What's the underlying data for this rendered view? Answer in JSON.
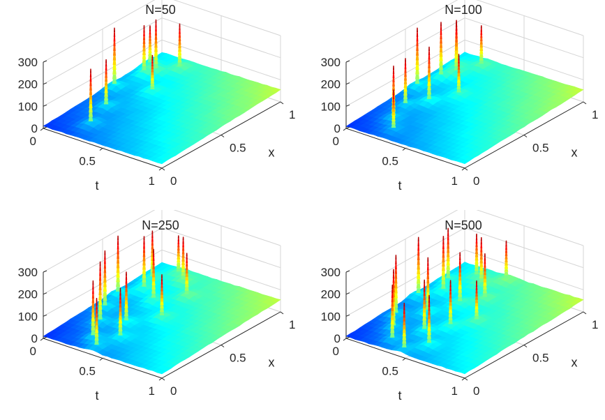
{
  "chart_data": [
    {
      "type": "surface",
      "title": "N=50",
      "xlabel": "x",
      "ylabel": "t",
      "zlabel": "",
      "x_ticks": [
        "0",
        "0.5",
        "1"
      ],
      "t_ticks": [
        "0",
        "0.5",
        "1"
      ],
      "z_ticks": [
        "0",
        "100",
        "200",
        "300"
      ],
      "xlim": [
        0,
        1
      ],
      "tlim": [
        0,
        1
      ],
      "zlim": [
        0,
        300
      ],
      "colormap": "jet",
      "grid": true,
      "spikes": [
        {
          "x": 0.15,
          "t": 0.25,
          "z": 270
        },
        {
          "x": 0.35,
          "t": 0.18,
          "z": 240
        },
        {
          "x": 0.55,
          "t": 0.05,
          "z": 300
        },
        {
          "x": 0.75,
          "t": 0.1,
          "z": 260
        },
        {
          "x": 0.8,
          "t": 0.15,
          "z": 280
        },
        {
          "x": 0.85,
          "t": 0.05,
          "z": 220
        },
        {
          "x": 0.9,
          "t": 0.25,
          "z": 250
        },
        {
          "x": 0.62,
          "t": 0.3,
          "z": 200
        }
      ]
    },
    {
      "type": "surface",
      "title": "N=100",
      "xlabel": "x",
      "ylabel": "t",
      "zlabel": "",
      "x_ticks": [
        "0",
        "0.5",
        "1"
      ],
      "t_ticks": [
        "0",
        "0.5",
        "1"
      ],
      "z_ticks": [
        "0",
        "100",
        "200",
        "300"
      ],
      "xlim": [
        0,
        1
      ],
      "tlim": [
        0,
        1
      ],
      "zlim": [
        0,
        300
      ],
      "colormap": "jet",
      "grid": true,
      "spikes": [
        {
          "x": 0.1,
          "t": 0.3,
          "z": 200
        },
        {
          "x": 0.2,
          "t": 0.2,
          "z": 260
        },
        {
          "x": 0.35,
          "t": 0.15,
          "z": 240
        },
        {
          "x": 0.45,
          "t": 0.25,
          "z": 280
        },
        {
          "x": 0.55,
          "t": 0.05,
          "z": 300
        },
        {
          "x": 0.6,
          "t": 0.35,
          "z": 220
        },
        {
          "x": 0.7,
          "t": 0.1,
          "z": 290
        },
        {
          "x": 0.78,
          "t": 0.15,
          "z": 270
        },
        {
          "x": 0.85,
          "t": 0.08,
          "z": 250
        },
        {
          "x": 0.92,
          "t": 0.22,
          "z": 230
        }
      ]
    },
    {
      "type": "surface",
      "title": "N=250",
      "xlabel": "x",
      "ylabel": "t",
      "zlabel": "",
      "x_ticks": [
        "0",
        "0.5",
        "1"
      ],
      "t_ticks": [
        "0",
        "0.5",
        "1"
      ],
      "z_ticks": [
        "0",
        "100",
        "200",
        "300"
      ],
      "xlim": [
        0,
        1
      ],
      "tlim": [
        0,
        1
      ],
      "zlim": [
        0,
        300
      ],
      "colormap": "jet",
      "grid": true,
      "spikes": [
        {
          "x": 0.05,
          "t": 0.4,
          "z": 240
        },
        {
          "x": 0.12,
          "t": 0.3,
          "z": 280
        },
        {
          "x": 0.2,
          "t": 0.45,
          "z": 250
        },
        {
          "x": 0.28,
          "t": 0.2,
          "z": 300
        },
        {
          "x": 0.35,
          "t": 0.35,
          "z": 260
        },
        {
          "x": 0.42,
          "t": 0.1,
          "z": 290
        },
        {
          "x": 0.5,
          "t": 0.5,
          "z": 230
        },
        {
          "x": 0.58,
          "t": 0.05,
          "z": 300
        },
        {
          "x": 0.63,
          "t": 0.3,
          "z": 270
        },
        {
          "x": 0.7,
          "t": 0.15,
          "z": 280
        },
        {
          "x": 0.76,
          "t": 0.45,
          "z": 240
        },
        {
          "x": 0.82,
          "t": 0.1,
          "z": 260
        },
        {
          "x": 0.88,
          "t": 0.3,
          "z": 250
        },
        {
          "x": 0.94,
          "t": 0.2,
          "z": 220
        }
      ]
    },
    {
      "type": "surface",
      "title": "N=500",
      "xlabel": "x",
      "ylabel": "t",
      "zlabel": "",
      "x_ticks": [
        "0",
        "0.5",
        "1"
      ],
      "t_ticks": [
        "0",
        "0.5",
        "1"
      ],
      "z_ticks": [
        "0",
        "100",
        "200",
        "300"
      ],
      "xlim": [
        0,
        1
      ],
      "tlim": [
        0,
        1
      ],
      "zlim": [
        0,
        300
      ],
      "colormap": "jet",
      "grid": true,
      "spikes": [
        {
          "x": 0.04,
          "t": 0.45,
          "z": 230
        },
        {
          "x": 0.09,
          "t": 0.3,
          "z": 270
        },
        {
          "x": 0.15,
          "t": 0.55,
          "z": 250
        },
        {
          "x": 0.2,
          "t": 0.2,
          "z": 290
        },
        {
          "x": 0.26,
          "t": 0.4,
          "z": 260
        },
        {
          "x": 0.32,
          "t": 0.1,
          "z": 300
        },
        {
          "x": 0.38,
          "t": 0.5,
          "z": 240
        },
        {
          "x": 0.44,
          "t": 0.25,
          "z": 280
        },
        {
          "x": 0.5,
          "t": 0.6,
          "z": 220
        },
        {
          "x": 0.56,
          "t": 0.05,
          "z": 300
        },
        {
          "x": 0.61,
          "t": 0.35,
          "z": 270
        },
        {
          "x": 0.67,
          "t": 0.15,
          "z": 290
        },
        {
          "x": 0.72,
          "t": 0.45,
          "z": 250
        },
        {
          "x": 0.78,
          "t": 0.08,
          "z": 280
        },
        {
          "x": 0.84,
          "t": 0.3,
          "z": 260
        },
        {
          "x": 0.9,
          "t": 0.2,
          "z": 240
        },
        {
          "x": 0.95,
          "t": 0.4,
          "z": 230
        }
      ]
    }
  ]
}
